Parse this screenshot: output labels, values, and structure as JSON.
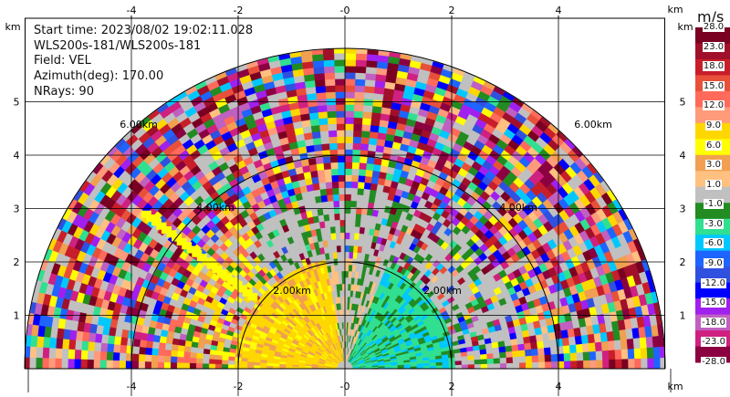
{
  "info": {
    "start_time": "Start time: 2023/08/02 19:02:11.028",
    "instrument": "WLS200s-181/WLS200s-181",
    "field": "Field: VEL",
    "azimuth": "Azimuth(deg): 170.00",
    "nrays": "NRays: 90"
  },
  "axes": {
    "unit": "km",
    "x_ticks": [
      "-4",
      "-2",
      "-0",
      "2",
      "4"
    ],
    "x_values": [
      -4,
      -2,
      0,
      2,
      4
    ],
    "y_ticks": [
      "1",
      "2",
      "3",
      "4",
      "5"
    ],
    "y_values": [
      1,
      2,
      3,
      4,
      5
    ],
    "x_range": [
      -6,
      6
    ],
    "y_range": [
      0,
      6
    ]
  },
  "range_rings": {
    "labels": [
      "2.00km",
      "2.00km",
      "4.00km",
      "4.00km",
      "6.00km",
      "6.00km"
    ],
    "radii_km": [
      2,
      4,
      6
    ]
  },
  "colorbar": {
    "unit": "m/s",
    "labels": [
      "28.0",
      "23.0",
      "18.0",
      "15.0",
      "12.0",
      "9.0",
      "6.0",
      "3.0",
      "1.0",
      "-1.0",
      "-3.0",
      "-6.0",
      "-9.0",
      "-12.0",
      "-15.0",
      "-18.0",
      "-23.0",
      "-28.0"
    ],
    "colors": [
      "#7a0022",
      "#a0102a",
      "#c81e2a",
      "#e8503a",
      "#ff6a5a",
      "#ff9a7a",
      "#ffd700",
      "#ffff00",
      "#f0a050",
      "#ffc080",
      "#c0c0c0",
      "#228b22",
      "#30e090",
      "#00c8ff",
      "#1e64ff",
      "#3050e0",
      "#0000ff",
      "#a020f0",
      "#c060c0",
      "#d02080",
      "#8b0040"
    ]
  }
}
